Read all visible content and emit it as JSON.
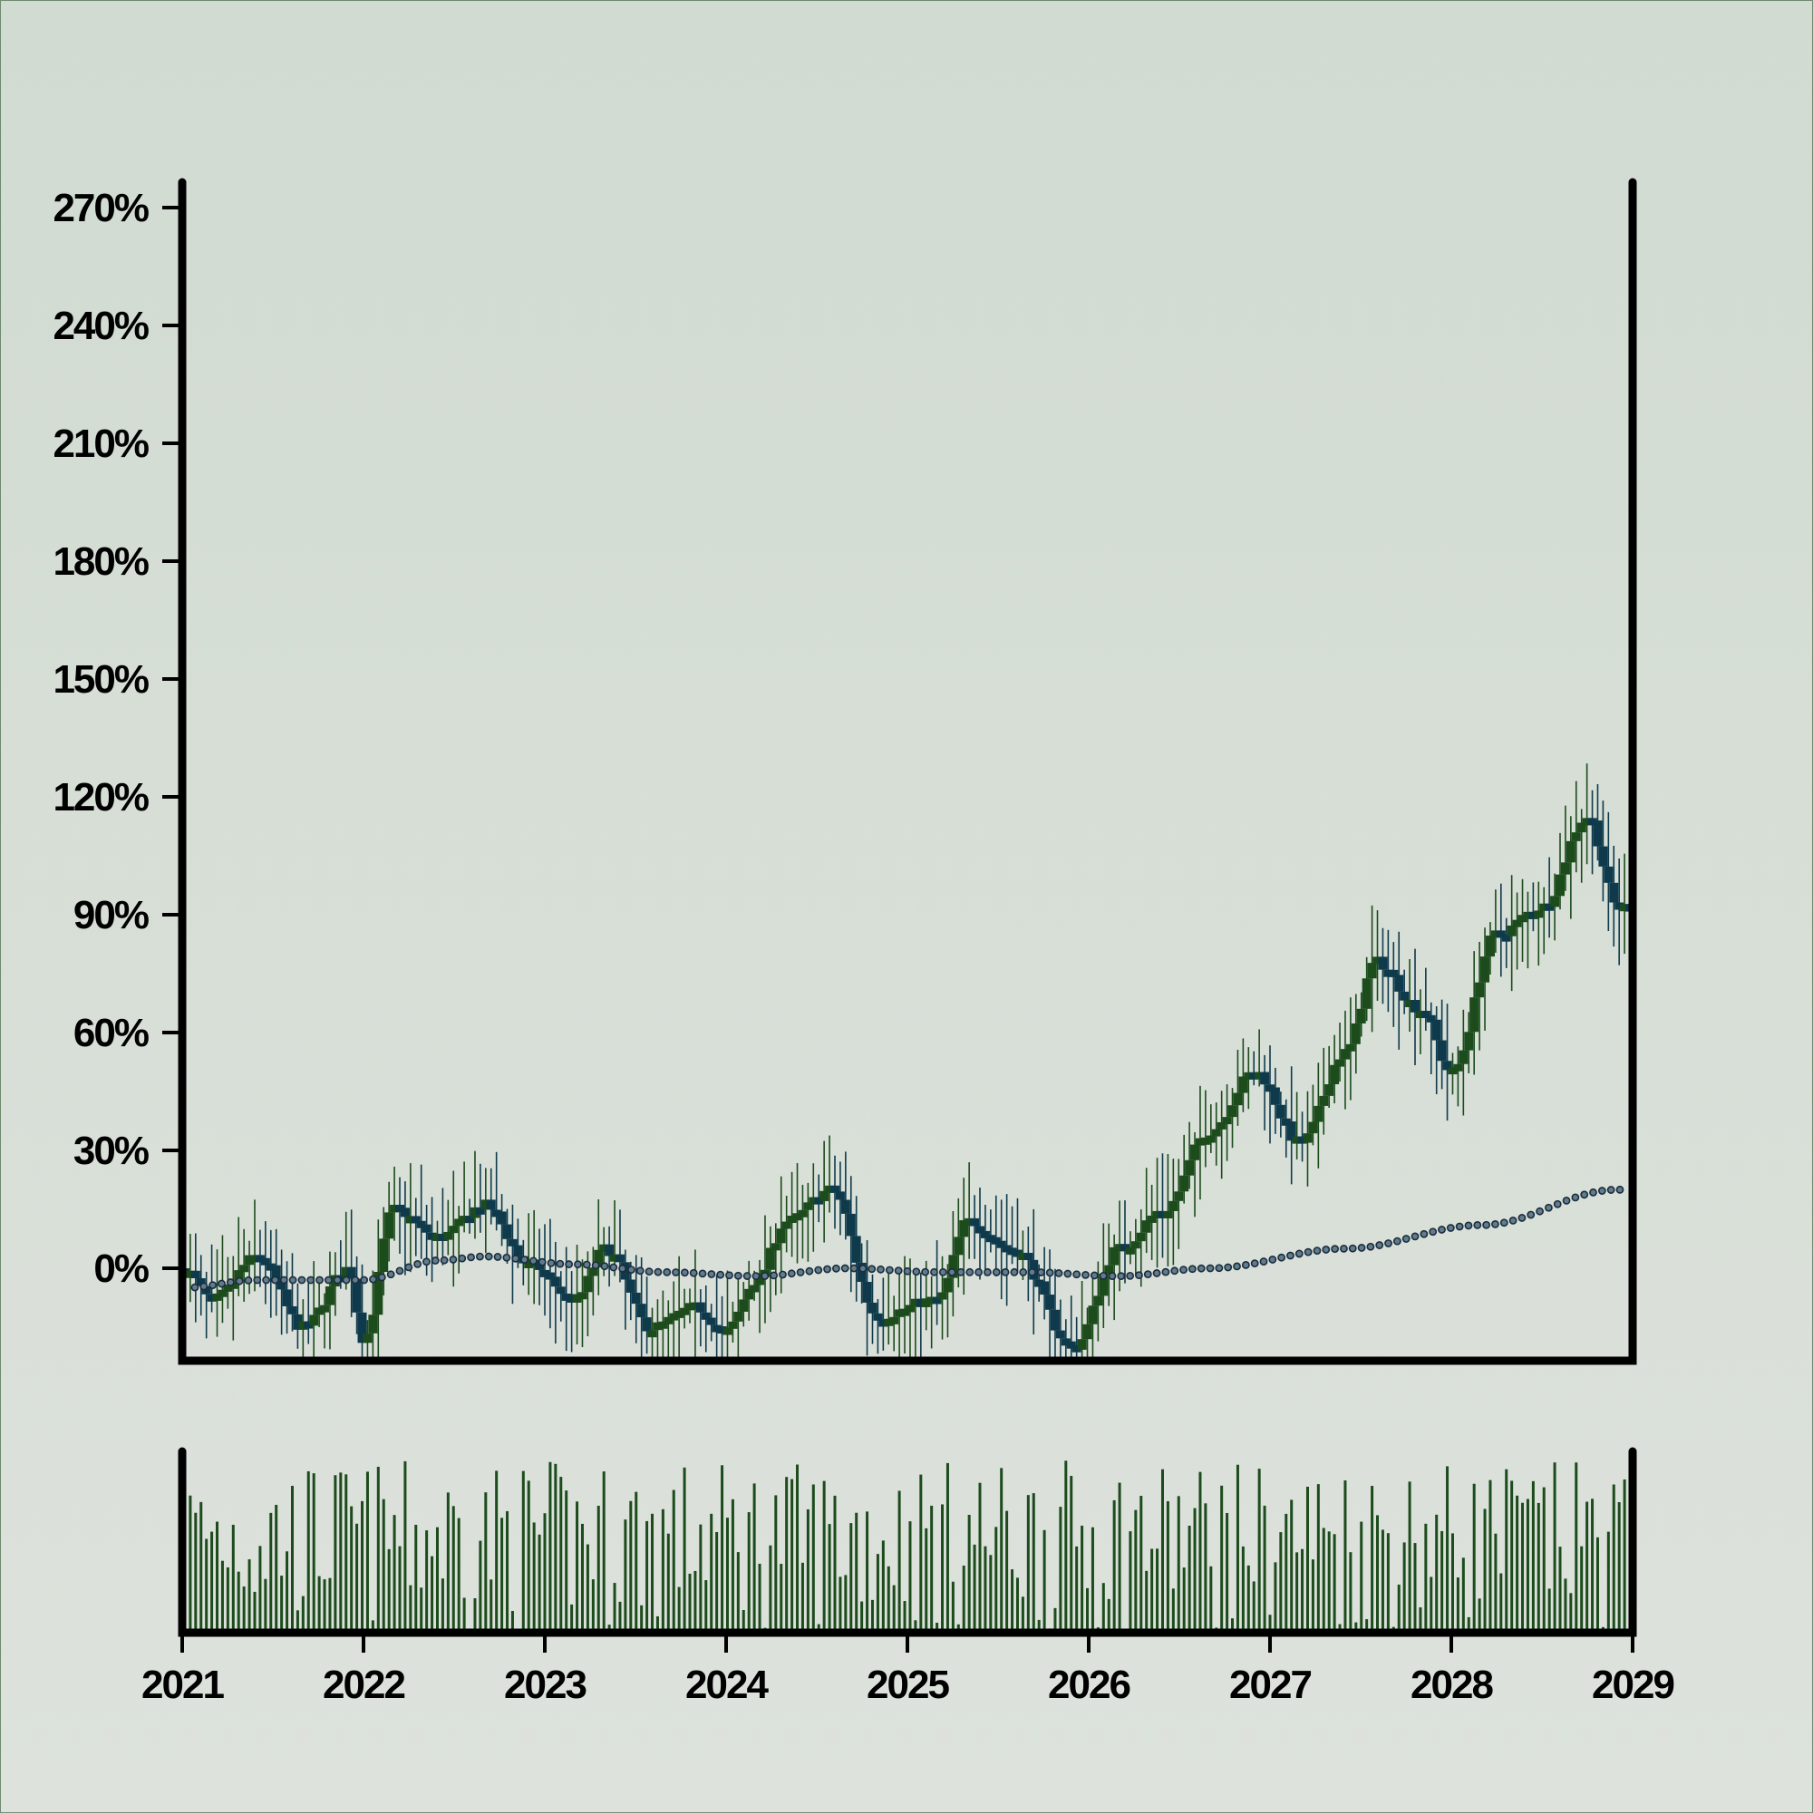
{
  "chart_data": {
    "type": "candlestick",
    "title": "",
    "xlabel": "",
    "ylabel": "",
    "x_range": [
      "2021",
      "2029"
    ],
    "x_ticks": [
      "2021",
      "2022",
      "2023",
      "2024",
      "2025",
      "2026",
      "2027",
      "2028",
      "2029"
    ],
    "y_range": [
      -15,
      275
    ],
    "y_ticks": [
      "0%",
      "30%",
      "60%",
      "90%",
      "120%",
      "150%",
      "180%",
      "210%",
      "240%",
      "270%"
    ],
    "y_tick_values": [
      0,
      30,
      60,
      90,
      120,
      150,
      180,
      210,
      240,
      270
    ],
    "grid": false,
    "legend": "none",
    "colors": {
      "up": "#1c4b1c",
      "down": "#0f3a4c",
      "moving_average": "#1c2b3c",
      "volume": "#1c4b1c",
      "axis": "#000000"
    },
    "price_keypoints": [
      [
        "2021-01",
        0
      ],
      [
        "2021-03",
        -8
      ],
      [
        "2021-06",
        3
      ],
      [
        "2021-09",
        -15
      ],
      [
        "2021-12",
        0
      ],
      [
        "2022-01",
        -18
      ],
      [
        "2022-03",
        15
      ],
      [
        "2022-06",
        8
      ],
      [
        "2022-09",
        16
      ],
      [
        "2022-12",
        1
      ],
      [
        "2023-03",
        -8
      ],
      [
        "2023-05",
        5
      ],
      [
        "2023-08",
        -15
      ],
      [
        "2023-11",
        -10
      ],
      [
        "2024-01",
        -16
      ],
      [
        "2024-03",
        -3
      ],
      [
        "2024-05",
        12
      ],
      [
        "2024-08",
        20
      ],
      [
        "2024-11",
        -12
      ],
      [
        "2025-03",
        -8
      ],
      [
        "2025-05",
        12
      ],
      [
        "2025-08",
        5
      ],
      [
        "2025-12",
        -20
      ],
      [
        "2026-03",
        5
      ],
      [
        "2026-06",
        15
      ],
      [
        "2026-09",
        35
      ],
      [
        "2026-12",
        50
      ],
      [
        "2027-03",
        32
      ],
      [
        "2027-06",
        55
      ],
      [
        "2027-08",
        78
      ],
      [
        "2027-11",
        66
      ],
      [
        "2028-01",
        50
      ],
      [
        "2028-04",
        85
      ],
      [
        "2028-07",
        92
      ],
      [
        "2028-10",
        115
      ],
      [
        "2028-12",
        92
      ]
    ],
    "moving_average_keypoints": [
      [
        "2021-01",
        -5
      ],
      [
        "2021-06",
        -3
      ],
      [
        "2022-01",
        -3
      ],
      [
        "2022-06",
        2
      ],
      [
        "2022-09",
        3
      ],
      [
        "2023-03",
        1
      ],
      [
        "2023-09",
        -1
      ],
      [
        "2024-03",
        -2
      ],
      [
        "2024-09",
        0
      ],
      [
        "2025-03",
        -1
      ],
      [
        "2025-09",
        -1
      ],
      [
        "2026-03",
        -2
      ],
      [
        "2026-09",
        0
      ],
      [
        "2027-06",
        5
      ],
      [
        "2028-03",
        11
      ],
      [
        "2028-12",
        20
      ]
    ],
    "volume_panel": {
      "value_range": [
        0,
        1
      ]
    }
  }
}
